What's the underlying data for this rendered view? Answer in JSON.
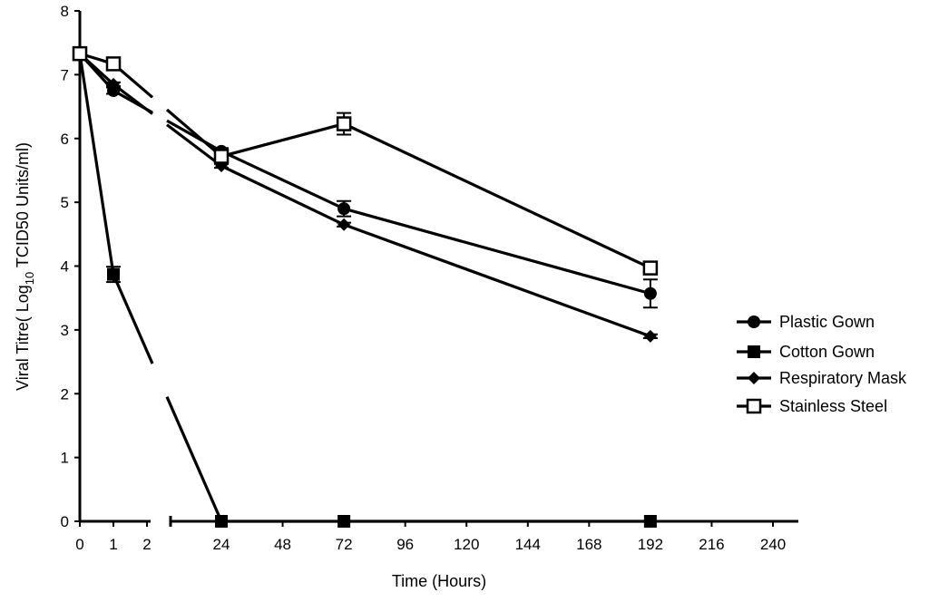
{
  "chart_data": {
    "type": "line",
    "xlabel": "Time (Hours)",
    "ylabel_prefix": "Viral Titre( Log",
    "ylabel_sub": "10",
    "ylabel_suffix": " TCID50 Units/ml)",
    "ylim": [
      0,
      8
    ],
    "y_ticks": [
      "0",
      "1",
      "2",
      "3",
      "4",
      "5",
      "6",
      "7",
      "8"
    ],
    "x_ticks_left": [
      "0",
      "1",
      "2"
    ],
    "x_ticks_right": [
      "24",
      "48",
      "72",
      "96",
      "120",
      "144",
      "168",
      "192",
      "216",
      "240"
    ],
    "x_break_between": [
      2,
      24
    ],
    "legend_position": "right",
    "series": [
      {
        "name": "Plastic Gown",
        "marker": "circle",
        "x": [
          0,
          1,
          24,
          72,
          192
        ],
        "values": [
          7.33,
          6.75,
          5.8,
          4.9,
          3.57
        ],
        "errors": [
          0.05,
          0.05,
          0.05,
          0.12,
          0.22
        ]
      },
      {
        "name": "Cotton Gown",
        "marker": "square",
        "x": [
          0,
          1,
          24,
          72,
          192
        ],
        "values": [
          7.33,
          3.87,
          0,
          0,
          0
        ],
        "errors": [
          0.05,
          0.12,
          0,
          0,
          0
        ]
      },
      {
        "name": "Respiratory Mask",
        "marker": "diamond",
        "x": [
          0,
          1,
          24,
          72,
          192
        ],
        "values": [
          7.33,
          6.85,
          5.57,
          4.65,
          2.9
        ],
        "errors": [
          0.03,
          0.03,
          0.03,
          0.03,
          0.03
        ]
      },
      {
        "name": "Stainless Steel",
        "marker": "open-square",
        "x": [
          0,
          1,
          24,
          72,
          192
        ],
        "values": [
          7.33,
          7.17,
          5.72,
          6.23,
          3.97
        ],
        "errors": [
          0.05,
          0.05,
          0.05,
          0.17,
          0.05
        ]
      }
    ]
  }
}
